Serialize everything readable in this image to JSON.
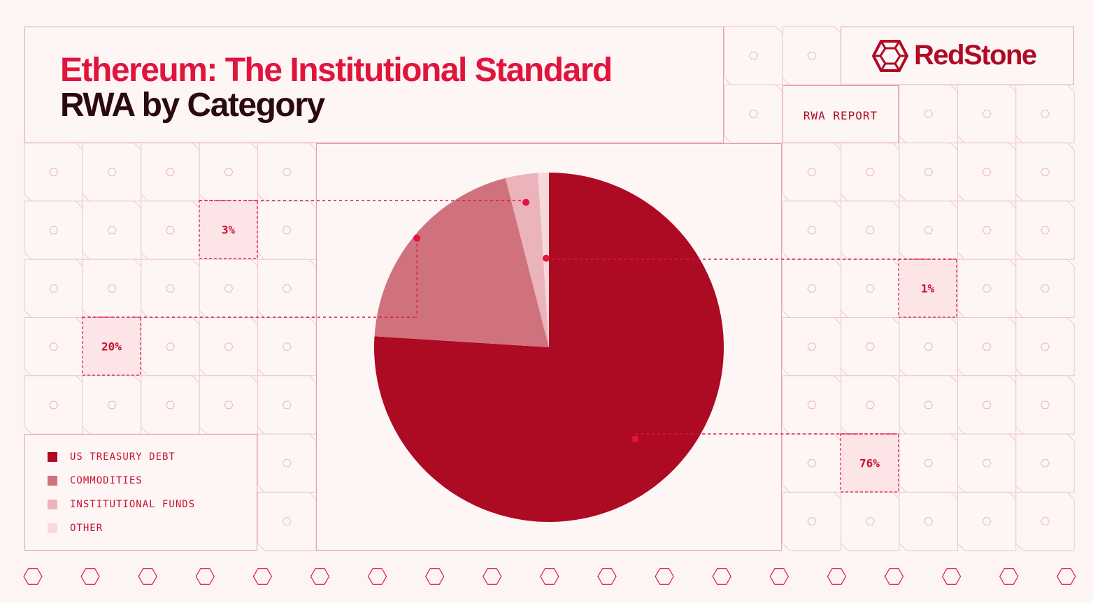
{
  "header": {
    "title": "Ethereum: The Institutional Standard",
    "subtitle": "RWA by Category"
  },
  "brand": {
    "name": "RedStone",
    "logo_icon": "redstone-hexagon-logo-icon"
  },
  "report_label": "RWA REPORT",
  "colors": {
    "accent": "#e0143c",
    "dark_text": "#2a0a0e",
    "grid_line": "#e3a0aa",
    "background": "#fdf5f4"
  },
  "chart_data": {
    "type": "pie",
    "title": "RWA by Category",
    "start_angle_deg": 0,
    "direction": "clockwise",
    "slices": [
      {
        "label": "US TREASURY DEBT",
        "value": 76,
        "display": "76%",
        "color": "#ad0a23"
      },
      {
        "label": "COMMODITIES",
        "value": 20,
        "display": "20%",
        "color": "#d0727e"
      },
      {
        "label": "INSTITUTIONAL FUNDS",
        "value": 3,
        "display": "3%",
        "color": "#ebb4ba"
      },
      {
        "label": "OTHER",
        "value": 1,
        "display": "1%",
        "color": "#f7d9dc"
      }
    ],
    "legend": {
      "placement": "bottom-left"
    }
  }
}
